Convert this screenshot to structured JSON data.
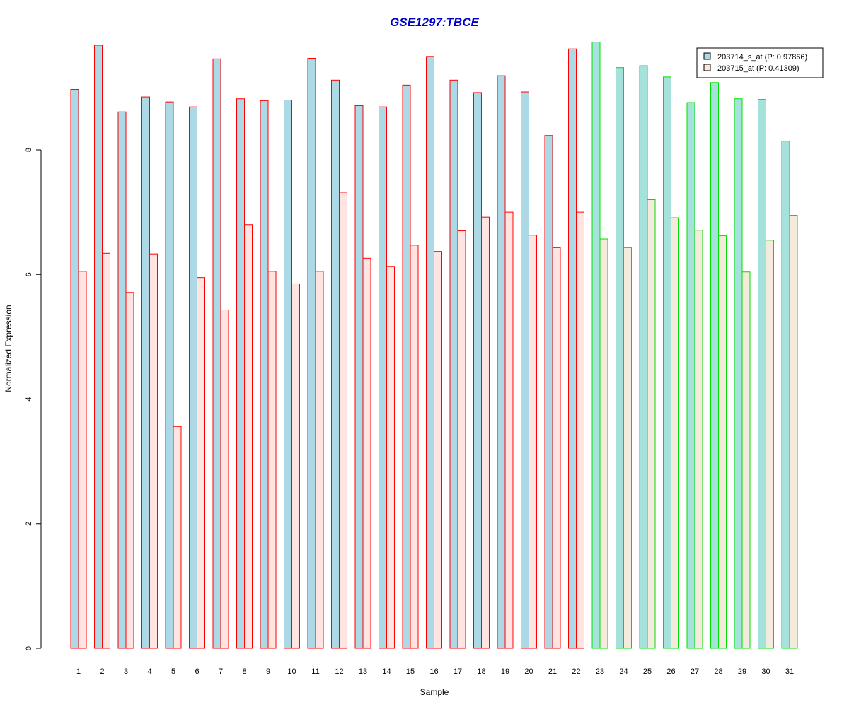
{
  "chart_data": {
    "type": "bar",
    "title": "GSE1297:TBCE",
    "title_color": "#0000CC",
    "xlabel": "Sample",
    "ylabel": "Normalized Expression",
    "ylim": [
      0,
      9.8
    ],
    "yticks": [
      0,
      2,
      4,
      6,
      8
    ],
    "grid": false,
    "legend_position": "top-right",
    "categories": [
      "1",
      "2",
      "3",
      "4",
      "5",
      "6",
      "7",
      "8",
      "9",
      "10",
      "11",
      "12",
      "13",
      "14",
      "15",
      "16",
      "17",
      "18",
      "19",
      "20",
      "21",
      "22",
      "23",
      "24",
      "25",
      "26",
      "27",
      "28",
      "29",
      "30",
      "31"
    ],
    "group_outline_colors": [
      "#FF0000",
      "#FF0000",
      "#FF0000",
      "#FF0000",
      "#FF0000",
      "#FF0000",
      "#FF0000",
      "#FF0000",
      "#FF0000",
      "#FF0000",
      "#FF0000",
      "#FF0000",
      "#FF0000",
      "#FF0000",
      "#FF0000",
      "#FF0000",
      "#FF0000",
      "#FF0000",
      "#FF0000",
      "#FF0000",
      "#FF0000",
      "#FF0000",
      "#00DD00",
      "#00DD00",
      "#00DD00",
      "#00DD00",
      "#00DD00",
      "#00DD00",
      "#00DD00",
      "#00DD00",
      "#00DD00"
    ],
    "series": [
      {
        "name": "203714_s_at (P: 0.97866)",
        "fill": "#ADD8E6",
        "values": [
          8.97,
          9.68,
          8.61,
          8.85,
          8.77,
          8.69,
          9.46,
          8.82,
          8.79,
          8.8,
          9.47,
          9.12,
          8.71,
          8.69,
          9.04,
          9.5,
          9.12,
          8.92,
          9.19,
          8.93,
          8.23,
          9.62,
          9.73,
          9.32,
          9.35,
          9.17,
          8.76,
          9.08,
          8.82,
          8.81,
          8.14
        ]
      },
      {
        "name": "203715_at (P: 0.41309)",
        "fill": "#FFE4E1",
        "values": [
          6.05,
          6.34,
          5.71,
          6.33,
          3.56,
          5.95,
          5.43,
          6.8,
          6.05,
          5.85,
          6.05,
          7.32,
          6.26,
          6.13,
          6.47,
          6.37,
          6.7,
          6.92,
          7.0,
          6.63,
          6.43,
          7.0,
          6.57,
          6.43,
          7.2,
          6.91,
          6.71,
          6.62,
          6.04,
          6.55,
          6.95
        ]
      }
    ],
    "legend_fill_light_green_group": [
      "#A6E2DC",
      "#F5EBDC"
    ]
  }
}
